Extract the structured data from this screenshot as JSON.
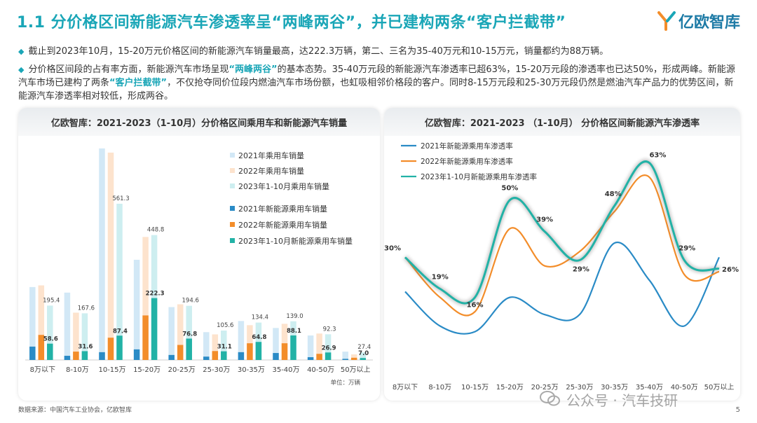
{
  "title": "1.1 分价格区间新能源汽车渗透率呈“两峰两谷”，并已建构两条“客户拦截带”",
  "logo": {
    "text": "亿欧智库"
  },
  "bullets": {
    "b1": "截止到2023年10月，15-20万元价格区间的新能源汽车销量最高，达222.3万辆，第二、三名为35-40万元和10-15万元，销量都约为88万辆。",
    "b2_part1": "分价格区间段的占有率方面，新能源汽车市场呈现",
    "b2_hl1": "“两峰两谷”",
    "b2_part2": "的基本态势。35-40万元段的新能源汽车渗透率已超63%，15-20万元段的渗透率也已达50%，形成两峰。新能源汽车市场已建构了两条",
    "b2_hl2": "“客户拦截带”",
    "b2_part3": "，不仅抢夺同价位段内燃油汽车市场份额，也虹吸相邻价格段的客户。同时8-15万元段和25-30万元段仍然是燃油汽车产品力的优势区间，新能源汽车渗透率相对较低，形成两谷。"
  },
  "left_chart_title": "亿欧智库：2021-2023（1-10月）分价格区间乘用车和新能源汽车销量",
  "right_chart_title": "亿欧智库：2021-2023 （1-10月） 分价格区间新能源汽车渗透率",
  "source": "数据来源：中国汽车工业协会，亿欧智库",
  "page_number": "5",
  "watermark": "公众号 · 汽车技研",
  "colors": {
    "accent": "#1aa6b7",
    "blue": "#2a8bc6",
    "orange": "#f38d2a",
    "teal": "#22b2a6",
    "light_blue": "#d2e8f6",
    "light_orange": "#fde3cd",
    "light_teal": "#cdeef0"
  },
  "chart_data": [
    {
      "type": "bar",
      "title": "亿欧智库：2021-2023（1-10月）分价格区间乘用车和新能源汽车销量",
      "categories": [
        "8万以下",
        "8-10万",
        "10-15万",
        "15-20万",
        "20-25万",
        "25-30万",
        "30-35万",
        "35-40万",
        "40-50万",
        "50万以上"
      ],
      "unit_label": "单位：万辆",
      "series": [
        {
          "name": "2021年乘用车销量",
          "values": [
            262,
            242,
            760,
            360,
            190,
            100,
            140,
            115,
            88,
            30
          ]
        },
        {
          "name": "2022年乘用车销量",
          "values": [
            268,
            170,
            745,
            442,
            200,
            92,
            125,
            130,
            95,
            20
          ]
        },
        {
          "name": "2023年1-10月乘用车销量",
          "values": [
            195.4,
            167.6,
            561.3,
            448.8,
            194.6,
            105.6,
            134.4,
            139.0,
            92.3,
            27.4
          ]
        },
        {
          "name": "2021年新能源乘用车销量",
          "values": [
            48,
            15,
            28,
            38,
            18,
            12,
            28,
            25,
            10,
            4
          ]
        },
        {
          "name": "2022年新能源乘用车销量",
          "values": [
            90,
            30,
            80,
            160,
            54,
            32,
            60,
            60,
            22,
            8
          ]
        },
        {
          "name": "2023年1-10月新能源乘用车销量",
          "values": [
            58.6,
            31.6,
            87.4,
            222.3,
            76.8,
            31.1,
            64.8,
            88.1,
            26.9,
            7.0
          ]
        }
      ],
      "data_labels": {
        "light": [
          "195.4",
          "167.6",
          "561.3",
          "448.8",
          "194.6",
          "105.6",
          "134.4",
          "139.0",
          "92.3",
          "27.4"
        ],
        "dark": [
          "58.6",
          "31.6",
          "87.4",
          "222.3",
          "76.8",
          "31.1",
          "64.8",
          "88.1",
          "26.9",
          "7.0"
        ]
      },
      "ylim": [
        0,
        780
      ]
    },
    {
      "type": "line",
      "title": "亿欧智库：2021-2023 （1-10月） 分价格区间新能源汽车渗透率",
      "categories": [
        "8万以下",
        "8-10万",
        "10-15万",
        "15-20万",
        "20-25万",
        "25-30万",
        "30-35万",
        "35-40万",
        "40-50万",
        "50万以上"
      ],
      "series": [
        {
          "name": "2021年新能源乘用车渗透率",
          "values": [
            18,
            6,
            4,
            16,
            10,
            10,
            35,
            22,
            6,
            30
          ]
        },
        {
          "name": "2022年新能源乘用车渗透率",
          "values": [
            30,
            16,
            11,
            40,
            27,
            32,
            46,
            58,
            24,
            25
          ]
        },
        {
          "name": "2023年1-10月新能源乘用车渗透率",
          "values": [
            30,
            19,
            16,
            50,
            39,
            29,
            48,
            63,
            29,
            26
          ]
        }
      ],
      "data_labels": [
        "30%",
        "19%",
        "16%",
        "50%",
        "39%",
        "29%",
        "48%",
        "63%",
        "29%",
        "26%"
      ],
      "ylim": [
        0,
        70
      ]
    }
  ]
}
